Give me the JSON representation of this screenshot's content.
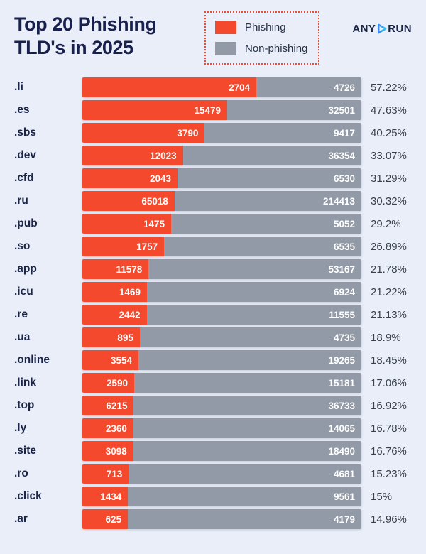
{
  "header": {
    "title": "Top 20 Phishing TLD's in 2025",
    "logo": {
      "any": "ANY",
      "run": "RUN"
    }
  },
  "legend": {
    "items": [
      {
        "label": "Phishing",
        "color": "#F4492C"
      },
      {
        "label": "Non-phishing",
        "color": "#919AA6"
      }
    ]
  },
  "colors": {
    "phishing": "#F4492C",
    "non_phishing": "#919AA6",
    "background": "#EAEEF8",
    "title_text": "#18214D",
    "tld_label_text": "#1B2547",
    "percent_text": "#38404D",
    "bar_value_text": "#FFFFFF",
    "legend_border": "#F4492C",
    "logo_text": "#1B2547",
    "logo_accent_start": "#3F86EC",
    "logo_accent_end": "#29C9F2"
  },
  "chart_data": {
    "type": "bar",
    "orientation": "horizontal-stacked",
    "title": "Top 20 Phishing TLD's in 2025",
    "legend": [
      "Phishing",
      "Non-phishing"
    ],
    "legend_position": "top",
    "grid": false,
    "categories": [
      ".li",
      ".es",
      ".sbs",
      ".dev",
      ".cfd",
      ".ru",
      ".pub",
      ".so",
      ".app",
      ".icu",
      ".re",
      ".ua",
      ".online",
      ".link",
      ".top",
      ".ly",
      ".site",
      ".ro",
      ".click",
      ".ar"
    ],
    "series": [
      {
        "name": "Phishing",
        "values": [
          2704,
          15479,
          3790,
          12023,
          2043,
          65018,
          1475,
          1757,
          11578,
          1469,
          2442,
          895,
          3554,
          2590,
          6215,
          2360,
          3098,
          713,
          1434,
          625
        ]
      },
      {
        "name": "Non-phishing",
        "values": [
          4726,
          32501,
          9417,
          36354,
          6530,
          214413,
          5052,
          6535,
          53167,
          6924,
          11555,
          4735,
          19265,
          15181,
          36733,
          14065,
          18490,
          4681,
          9561,
          4179
        ]
      }
    ],
    "percent_values": [
      57.22,
      47.63,
      40.25,
      33.07,
      31.29,
      30.32,
      29.2,
      26.89,
      21.78,
      21.22,
      21.13,
      18.9,
      18.45,
      17.06,
      16.92,
      16.78,
      16.76,
      15.23,
      15,
      14.96
    ],
    "percent_labels": [
      "57.22%",
      "47.63%",
      "40.25%",
      "33.07%",
      "31.29%",
      "30.32%",
      "29.2%",
      "26.89%",
      "21.78%",
      "21.22%",
      "21.13%",
      "18.9%",
      "18.45%",
      "17.06%",
      "16.92%",
      "16.78%",
      "16.76%",
      "15.23%",
      "15%",
      "14.96%"
    ]
  }
}
